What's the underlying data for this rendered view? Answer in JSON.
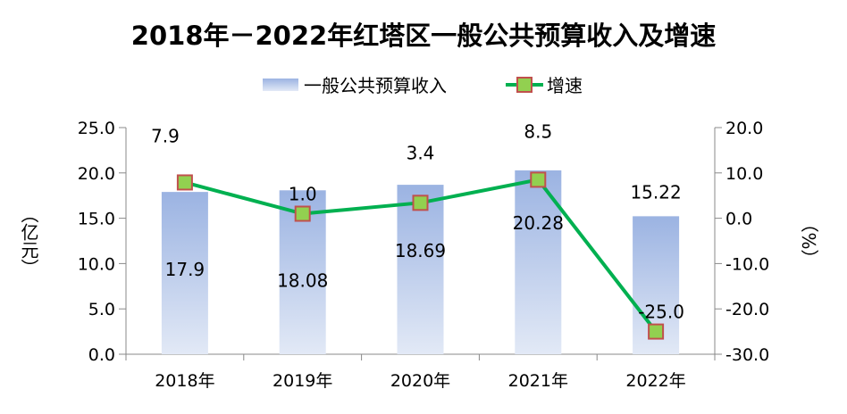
{
  "chart_data": {
    "type": "bar+line",
    "title": "2018年－2022年红塔区一般公共预算收入及增速",
    "categories": [
      "2018年",
      "2019年",
      "2020年",
      "2021年",
      "2022年"
    ],
    "series": [
      {
        "name": "一般公共预算收入",
        "type": "bar",
        "axis": "left",
        "values": [
          17.9,
          18.08,
          18.69,
          20.28,
          15.22
        ],
        "labels": [
          "17.9",
          "18.08",
          "18.69",
          "20.28",
          "15.22"
        ]
      },
      {
        "name": "增速",
        "type": "line",
        "axis": "right",
        "values": [
          7.9,
          1.0,
          3.4,
          8.5,
          -25.0
        ],
        "labels": [
          "7.9",
          "1.0",
          "3.4",
          "8.5",
          "-25.0"
        ]
      }
    ],
    "ylabel_left": "（亿元）",
    "ylabel_right": "（%）",
    "ylim_left": [
      0,
      25
    ],
    "ylim_right": [
      -30,
      20
    ],
    "yticks_left": [
      "0.0",
      "5.0",
      "10.0",
      "15.0",
      "20.0",
      "25.0"
    ],
    "yticks_right": [
      "-30.0",
      "-20.0",
      "-10.0",
      "0.0",
      "10.0",
      "20.0"
    ],
    "grid": false,
    "legend": "top",
    "colors": {
      "bar_top": "#9bb3e2",
      "bar_bottom": "#e2e9f6",
      "line": "#00b050",
      "marker_fill": "#92d050",
      "marker_stroke": "#c0504d"
    }
  }
}
